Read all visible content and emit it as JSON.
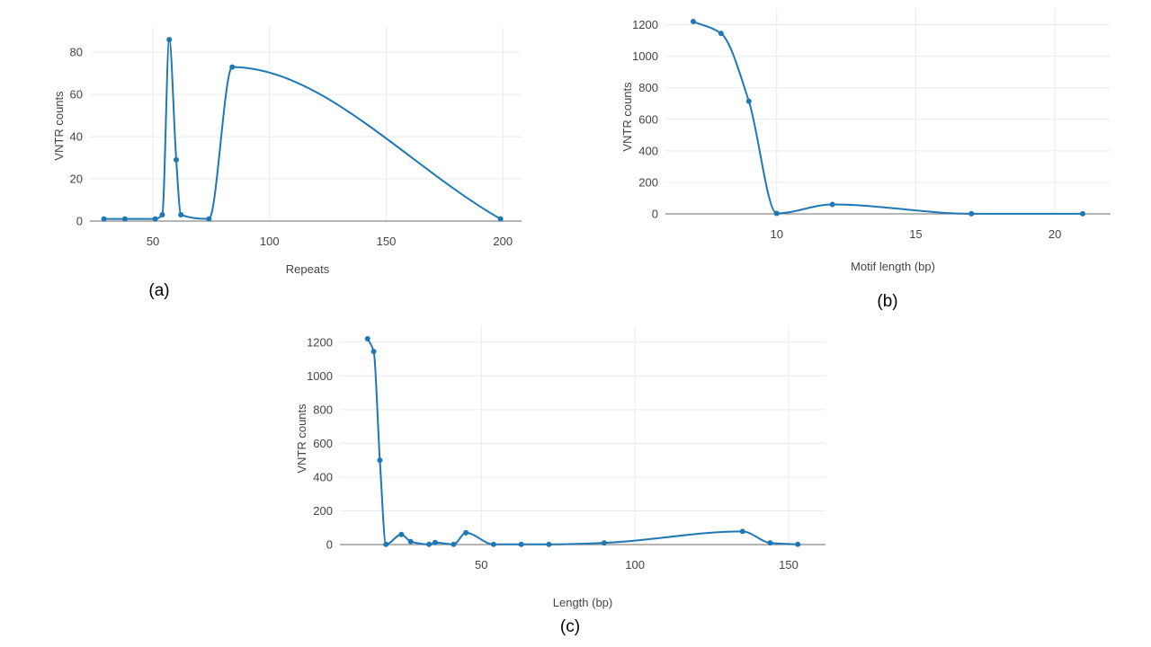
{
  "chart_data": [
    {
      "type": "line",
      "panel_label": "(a)",
      "xlabel": "Repeats",
      "ylabel": "VNTR counts",
      "xlim": [
        23,
        208
      ],
      "ylim": [
        0,
        92
      ],
      "xticks": [
        50,
        100,
        150,
        200
      ],
      "yticks": [
        0,
        20,
        40,
        60,
        80
      ],
      "grid": true,
      "line_color": "#1f77b4",
      "series": [
        {
          "x": [
            29,
            38,
            51,
            54,
            57,
            60,
            62,
            74,
            84,
            199
          ],
          "y": [
            1,
            1,
            1,
            3,
            86,
            29,
            3,
            1,
            73,
            1
          ]
        }
      ]
    },
    {
      "type": "line",
      "panel_label": "(b)",
      "xlabel": "Motif length (bp)",
      "ylabel": "VNTR counts",
      "xlim": [
        6,
        22
      ],
      "ylim": [
        -20,
        1300
      ],
      "xticks": [
        10,
        15,
        20
      ],
      "yticks": [
        0,
        200,
        400,
        600,
        800,
        1000,
        1200
      ],
      "grid": true,
      "line_color": "#1f77b4",
      "series": [
        {
          "x": [
            7,
            8,
            9,
            10,
            12,
            17,
            21
          ],
          "y": [
            1220,
            1145,
            715,
            3,
            60,
            1,
            1
          ]
        }
      ]
    },
    {
      "type": "line",
      "panel_label": "(c)",
      "xlabel": "Length (bp)",
      "ylabel": "VNTR counts",
      "xlim": [
        4,
        162
      ],
      "ylim": [
        -20,
        1300
      ],
      "xticks": [
        50,
        100,
        150
      ],
      "yticks": [
        0,
        200,
        400,
        600,
        800,
        1000,
        1200
      ],
      "grid": true,
      "line_color": "#1f77b4",
      "series": [
        {
          "x": [
            13,
            15,
            17,
            19,
            24,
            27,
            33,
            35,
            41,
            45,
            54,
            63,
            72,
            90,
            135,
            144,
            153
          ],
          "y": [
            1220,
            1145,
            500,
            1,
            60,
            18,
            1,
            12,
            1,
            70,
            1,
            1,
            1,
            10,
            78,
            10,
            1
          ]
        }
      ]
    }
  ]
}
